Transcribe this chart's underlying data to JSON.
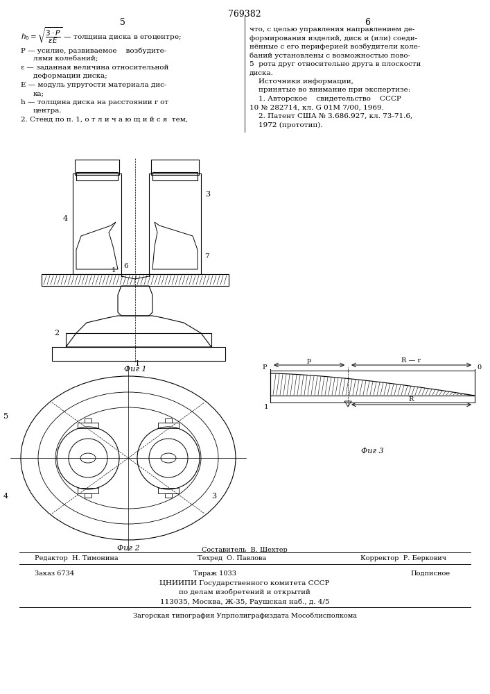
{
  "patent_number": "769382",
  "background_color": "#ffffff",
  "col1_number": "5",
  "col2_number": "6",
  "footer_redaktor": "Редактор  Н. Тимонина",
  "footer_sostavitel": "Составитель  В. Шехтер",
  "footer_tehred": "Техред  О. Павлова",
  "footer_korrektor": "Корректор  Р. Беркович",
  "footer_zakaz": "Заказ 6734",
  "footer_tirazh": "Тираж 1033",
  "footer_podpisnoe": "Подписное",
  "footer_tsniip1": "ЦНИИПИ Государственного комитета СССР",
  "footer_tsniip2": "по делам изобретений и открытий",
  "footer_tsniip3": "113035, Москва, Ж-35, Раушская наб., д. 4/5",
  "footer_zagorsk": "Загорская типография Упрполиграфиздата Мособлисполкома",
  "fig1_caption": "Фиг 1",
  "fig2_caption": "Фиг 2",
  "fig3_caption": "Фиг 3"
}
